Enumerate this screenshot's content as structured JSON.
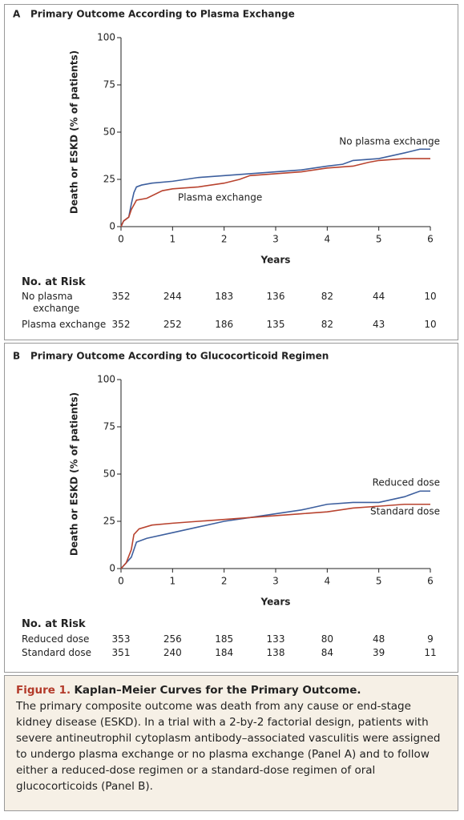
{
  "chart_data": [
    {
      "type": "line",
      "panel": "A",
      "title": "Primary Outcome According to Plasma Exchange",
      "ylabel": "Death or ESKD (% of patients)",
      "xlabel": "Years",
      "xlim": [
        0,
        6
      ],
      "xticks": [
        0,
        1,
        2,
        3,
        4,
        5,
        6
      ],
      "ylim": [
        0,
        100
      ],
      "yticks": [
        0,
        25,
        50,
        75,
        100
      ],
      "series": [
        {
          "name": "No plasma exchange",
          "color": "#3d5f9e",
          "x": [
            0,
            0.05,
            0.15,
            0.2,
            0.25,
            0.3,
            0.4,
            0.6,
            1,
            1.5,
            2,
            2.5,
            3,
            3.5,
            4,
            4.3,
            4.5,
            5,
            5.5,
            5.8,
            6
          ],
          "values": [
            0,
            3,
            5,
            12,
            18,
            21,
            22,
            23,
            24,
            26,
            27,
            28,
            29,
            30,
            32,
            33,
            35,
            36,
            39,
            41,
            41
          ]
        },
        {
          "name": "Plasma exchange",
          "color": "#b8432f",
          "x": [
            0,
            0.05,
            0.15,
            0.2,
            0.3,
            0.5,
            0.8,
            1,
            1.5,
            2,
            2.3,
            2.5,
            3,
            3.5,
            4,
            4.5,
            4.8,
            5,
            5.5,
            6
          ],
          "values": [
            0,
            3,
            5,
            9,
            14,
            15,
            19,
            20,
            21,
            23,
            25,
            27,
            28,
            29,
            31,
            32,
            34,
            35,
            36,
            36
          ]
        }
      ],
      "risk_table": {
        "title": "No. at Risk",
        "rows": [
          {
            "label": "No plasma exchange",
            "values": [
              352,
              244,
              183,
              136,
              82,
              44,
              10
            ]
          },
          {
            "label": "Plasma exchange",
            "values": [
              352,
              252,
              186,
              135,
              82,
              43,
              10
            ]
          }
        ]
      }
    },
    {
      "type": "line",
      "panel": "B",
      "title": "Primary Outcome According to Glucocorticoid Regimen",
      "ylabel": "Death or ESKD (% of patients)",
      "xlabel": "Years",
      "xlim": [
        0,
        6
      ],
      "xticks": [
        0,
        1,
        2,
        3,
        4,
        5,
        6
      ],
      "ylim": [
        0,
        100
      ],
      "yticks": [
        0,
        25,
        50,
        75,
        100
      ],
      "series": [
        {
          "name": "Reduced dose",
          "color": "#3d5f9e",
          "x": [
            0,
            0.1,
            0.2,
            0.3,
            0.5,
            1,
            1.5,
            2,
            2.5,
            3,
            3.5,
            4,
            4.5,
            5,
            5.5,
            5.8,
            6
          ],
          "values": [
            0,
            3,
            6,
            14,
            16,
            19,
            22,
            25,
            27,
            29,
            31,
            34,
            35,
            35,
            38,
            41,
            41
          ]
        },
        {
          "name": "Standard dose",
          "color": "#b8432f",
          "x": [
            0,
            0.1,
            0.2,
            0.25,
            0.35,
            0.6,
            1,
            1.5,
            2,
            2.5,
            3,
            3.5,
            4,
            4.5,
            5,
            5.5,
            6
          ],
          "values": [
            0,
            3,
            10,
            18,
            21,
            23,
            24,
            25,
            26,
            27,
            28,
            29,
            30,
            32,
            33,
            34,
            34
          ]
        }
      ],
      "risk_table": {
        "title": "No. at Risk",
        "rows": [
          {
            "label": "Reduced dose",
            "values": [
              353,
              256,
              185,
              133,
              80,
              48,
              9
            ]
          },
          {
            "label": "Standard dose",
            "values": [
              351,
              240,
              184,
              138,
              84,
              39,
              11
            ]
          }
        ]
      }
    }
  ],
  "caption": {
    "label": "Figure 1.",
    "title": "Kaplan–Meier Curves for the Primary Outcome.",
    "text": "The primary composite outcome was death from any cause or end-stage kidney disease (ESKD). In a trial with a 2-by-2 factorial design, patients with severe antineutrophil cytoplasm antibody–associated vasculitis were assigned to undergo plasma exchange or no plasma exchange (Panel A) and to follow either a reduced-dose regimen or a standard-dose regimen of oral glucocorticoids (Panel B)."
  }
}
